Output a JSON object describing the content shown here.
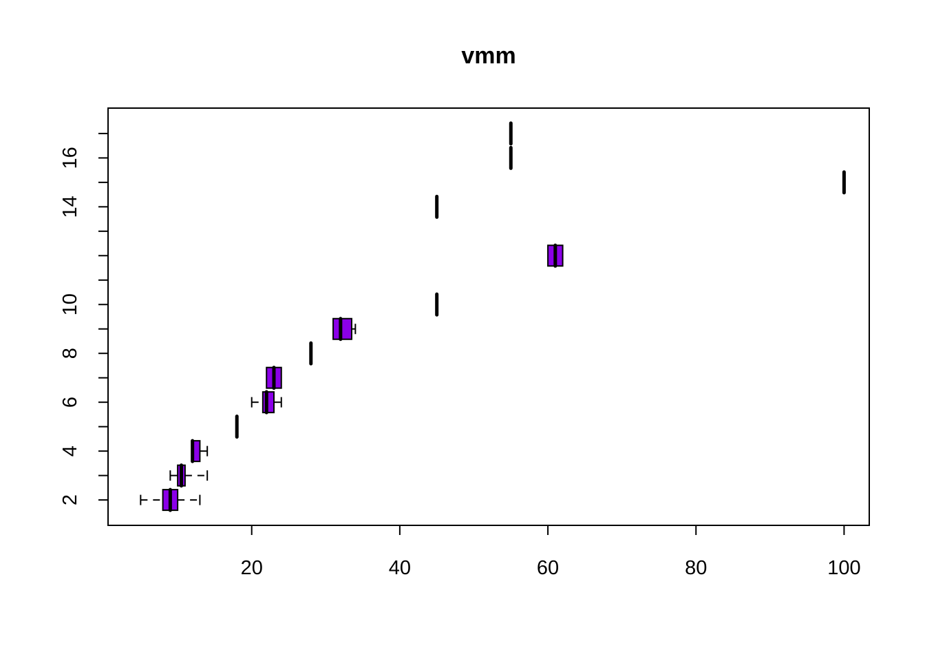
{
  "chart_data": {
    "type": "boxplot",
    "orientation": "horizontal",
    "title": "vmm",
    "xlabel": "",
    "ylabel": "",
    "xlim": [
      0.6,
      103.4
    ],
    "ylim": [
      0.96,
      18.04
    ],
    "x_ticks": [
      20,
      40,
      60,
      80,
      100
    ],
    "y_ticks": [
      2,
      3,
      4,
      5,
      6,
      7,
      8,
      9,
      10,
      11,
      12,
      13,
      14,
      15,
      16,
      17
    ],
    "y_tick_labels": [
      "2",
      "",
      "4",
      "",
      "6",
      "",
      "8",
      "",
      "10",
      "",
      "",
      "",
      "14",
      "",
      "16",
      ""
    ],
    "box_color": "#8b00e8",
    "boxes": [
      {
        "group": 2,
        "min": 5,
        "q1": 8,
        "median": 9,
        "q3": 10,
        "max": 13
      },
      {
        "group": 3,
        "min": 9,
        "q1": 10,
        "median": 10.5,
        "q3": 11,
        "max": 14
      },
      {
        "group": 4,
        "min": 12,
        "q1": 12,
        "median": 12,
        "q3": 13,
        "max": 14
      },
      {
        "group": 5,
        "min": 18,
        "q1": 18,
        "median": 18,
        "q3": 18,
        "max": 18
      },
      {
        "group": 6,
        "min": 20,
        "q1": 21.5,
        "median": 22,
        "q3": 23,
        "max": 24
      },
      {
        "group": 7,
        "min": 22,
        "q1": 22,
        "median": 23,
        "q3": 24,
        "max": 24
      },
      {
        "group": 8,
        "min": 28,
        "q1": 28,
        "median": 28,
        "q3": 28,
        "max": 28
      },
      {
        "group": 9,
        "min": 31,
        "q1": 31,
        "median": 32,
        "q3": 33.5,
        "max": 34
      },
      {
        "group": 10,
        "min": 45,
        "q1": 45,
        "median": 45,
        "q3": 45,
        "max": 45
      },
      {
        "group": 12,
        "min": 60,
        "q1": 60,
        "median": 61,
        "q3": 62,
        "max": 62
      },
      {
        "group": 14,
        "min": 45,
        "q1": 45,
        "median": 45,
        "q3": 45,
        "max": 45
      },
      {
        "group": 15,
        "min": 100,
        "q1": 100,
        "median": 100,
        "q3": 100,
        "max": 100
      },
      {
        "group": 16,
        "min": 55,
        "q1": 55,
        "median": 55,
        "q3": 55,
        "max": 55
      },
      {
        "group": 17,
        "min": 55,
        "q1": 55,
        "median": 55,
        "q3": 55,
        "max": 55
      }
    ]
  }
}
